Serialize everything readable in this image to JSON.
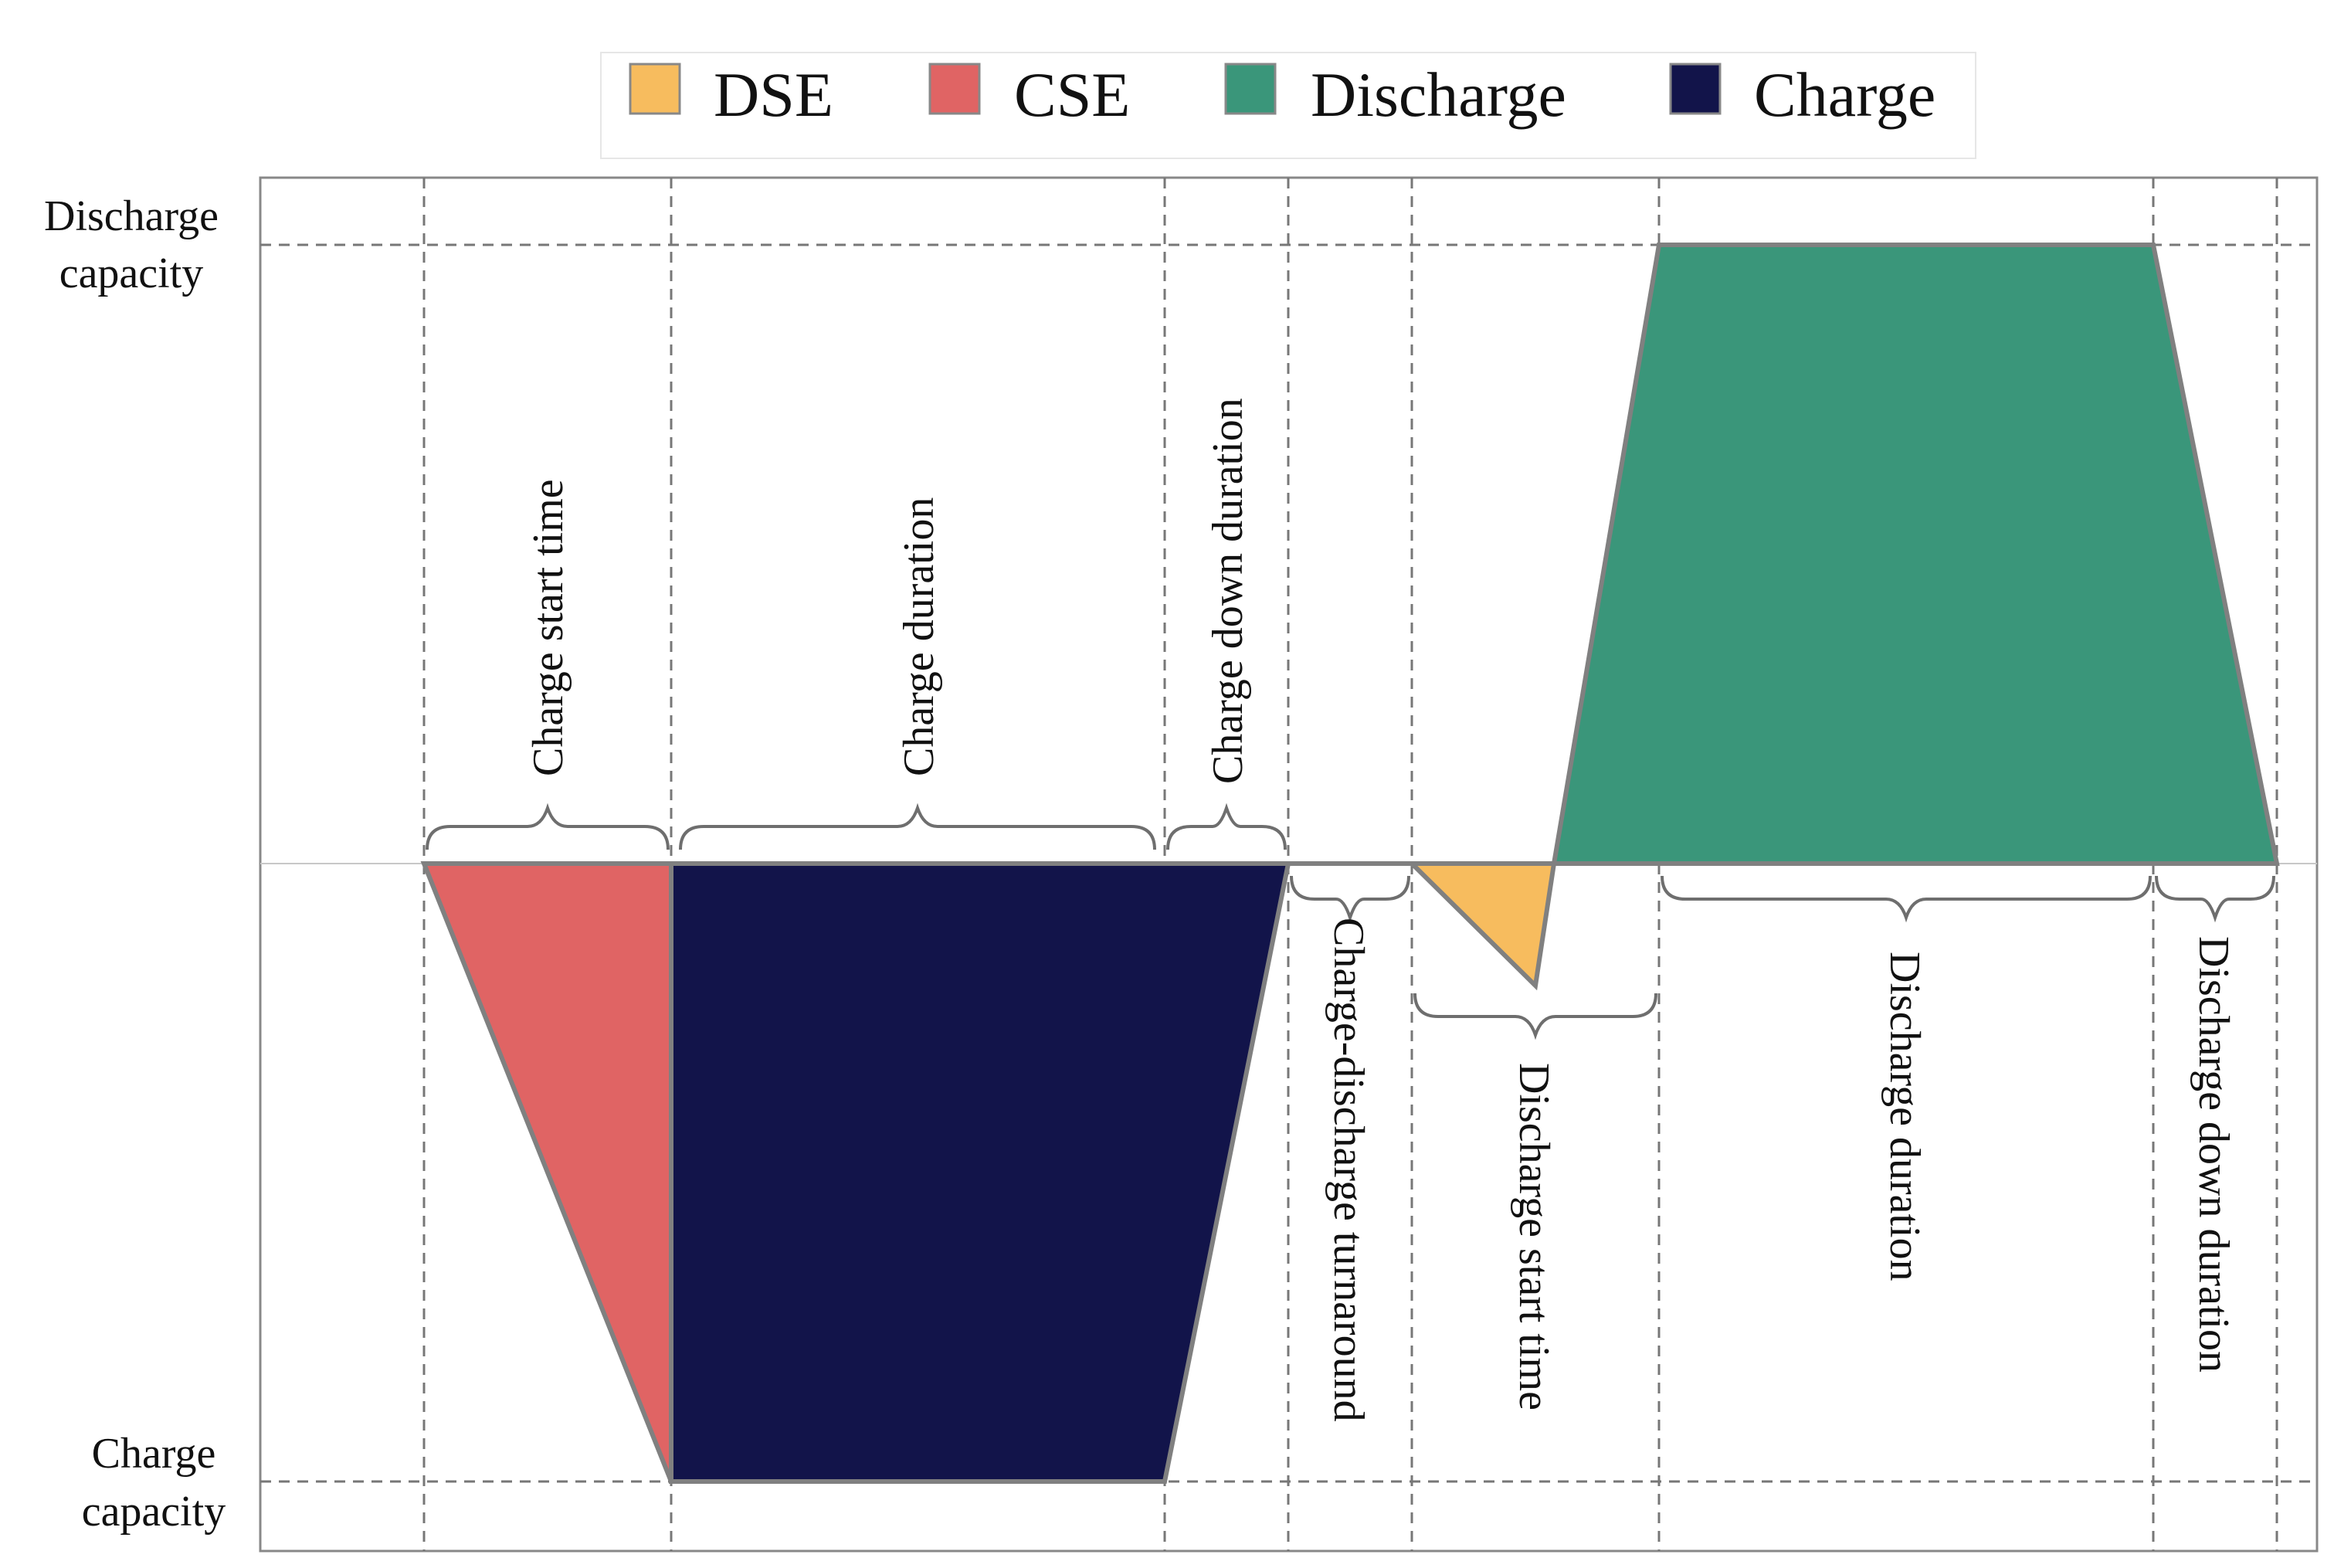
{
  "legend": [
    {
      "key": "dse",
      "label": "DSE",
      "color": "#F7BC5E"
    },
    {
      "key": "cse",
      "label": "CSE",
      "color": "#E06464"
    },
    {
      "key": "discharge",
      "label": "Discharge",
      "color": "#3A967A"
    },
    {
      "key": "charge",
      "label": "Charge",
      "color": "#12144A"
    }
  ],
  "y_axis": {
    "top_label": [
      "Discharge",
      "capacity"
    ],
    "bottom_label": [
      "Charge",
      "capacity"
    ]
  },
  "phases": {
    "charge_start_time": "Charge start time",
    "charge_duration": "Charge duration",
    "charge_down_duration": "Charge down duration",
    "charge_discharge_turnaround": "Charge-discharge turnaround",
    "discharge_start_time": "Discharge start time",
    "discharge_duration": "Discharge duration",
    "discharge_down_duration": "Discharge down duration"
  },
  "colors": {
    "grid": "#777777",
    "outline": "#808080",
    "frame": "#888888"
  }
}
